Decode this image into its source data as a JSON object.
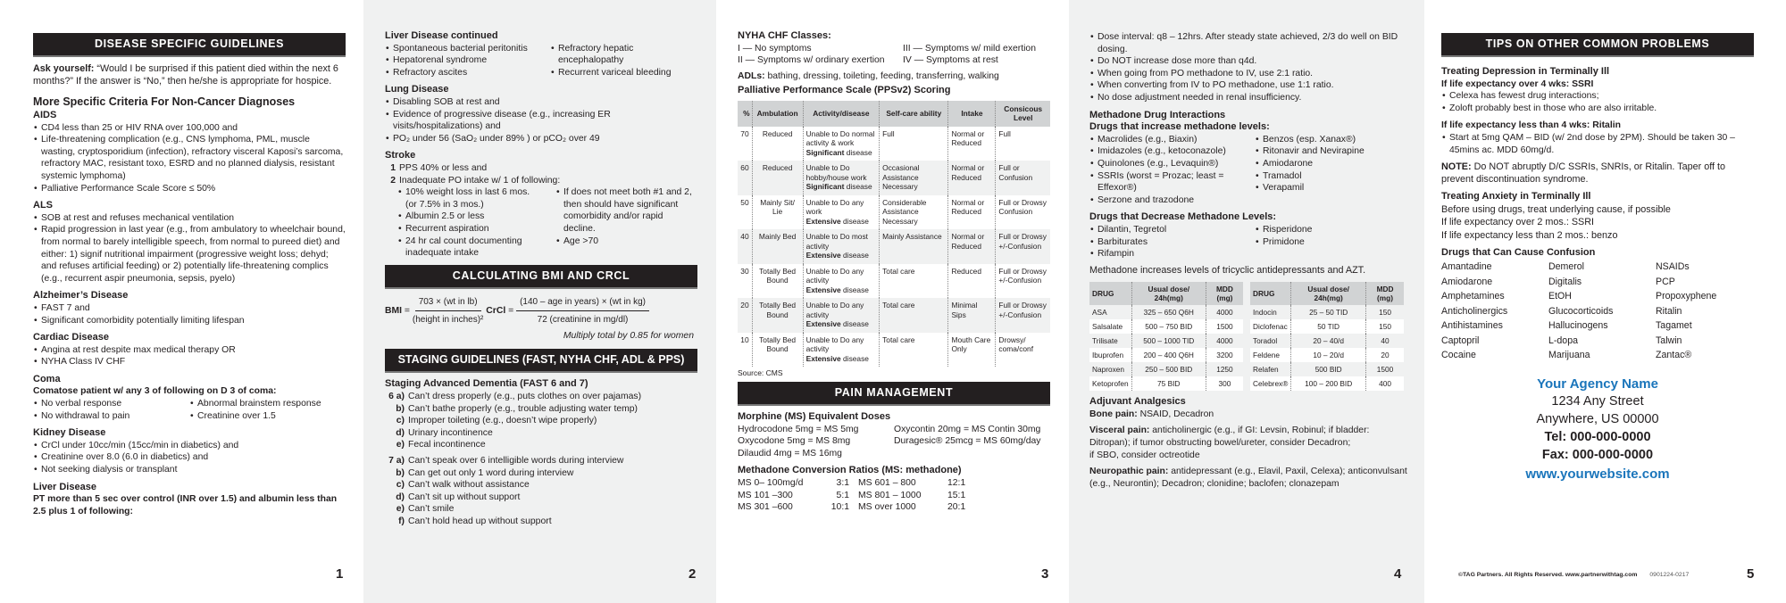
{
  "p1": {
    "header": "DISEASE SPECIFIC GUIDELINES",
    "ask_label": "Ask yourself:",
    "ask_text": "“Would I be surprised if this patient died within the next 6 months?” If the answer is “No,” then he/she is appropriate for hospice.",
    "criteria_title": "More Specific Criteria For Non-Cancer Diagnoses",
    "aids": {
      "title": "AIDS",
      "items": [
        "CD4 less than 25 or HIV RNA over 100,000 and",
        "Life-threatening complication (e.g., CNS lymphoma, PML, muscle wasting, cryptosporidium (infection), refractory visceral Kaposi’s sarcoma, refractory MAC, resistant toxo, ESRD and no planned dialysis, resistant systemic lymphoma)",
        "Palliative Performance Scale Score ≤ 50%"
      ]
    },
    "als": {
      "title": "ALS",
      "items": [
        "SOB at rest and refuses mechanical ventilation",
        "Rapid progression in last year (e.g., from ambulatory to wheelchair bound, from normal to barely intelligible speech, from normal to pureed diet) and either: 1) signif nutritional impairment (progressive weight loss; dehyd; and refuses artificial feeding) or 2) potentially life-threatening complics (e.g., recurrent aspir pneumonia, sepsis, pyelo)"
      ]
    },
    "alz": {
      "title": "Alzheimer’s Disease",
      "items": [
        "FAST 7 and",
        "Significant comorbidity potentially limiting lifespan"
      ]
    },
    "cardiac": {
      "title": "Cardiac Disease",
      "items": [
        "Angina at rest despite max medical therapy OR",
        "NYHA Class IV CHF"
      ]
    },
    "coma": {
      "title": "Coma",
      "intro": "Comatose patient w/ any 3 of following on D 3 of coma:",
      "left": [
        "No verbal response",
        "No withdrawal to pain"
      ],
      "right": [
        "Abnormal brainstem response",
        "Creatinine over 1.5"
      ]
    },
    "kidney": {
      "title": "Kidney Disease",
      "items": [
        "CrCl under 10cc/min (15cc/min in diabetics) and",
        "Creatinine over 8.0 (6.0 in diabetics) and",
        "Not seeking dialysis or transplant"
      ]
    },
    "liver": {
      "title": "Liver Disease",
      "text": "PT more than 5 sec over control (INR over 1.5) and albumin less than 2.5 plus 1 of following:"
    },
    "page": "1"
  },
  "p2": {
    "liver": {
      "title": "Liver Disease continued",
      "left": [
        "Spontaneous bacterial peritonitis",
        "Hepatorenal syndrome",
        "Refractory ascites"
      ],
      "right": [
        "Refractory hepatic encephalopathy",
        "Recurrent variceal bleeding"
      ]
    },
    "lung": {
      "title": "Lung Disease",
      "items": [
        "Disabling SOB at rest and",
        "Evidence of progressive disease (e.g., increasing ER visits/hospitalizations) and",
        "PO₂ under 56 (SaO₂ under 89% ) or pCO₂ over 49"
      ]
    },
    "stroke": {
      "title": "Stroke",
      "step1_num": "1",
      "step1": "PPS 40% or less and",
      "step2_num": "2",
      "step2": "Inadequate PO intake w/ 1 of following:",
      "left": [
        "10% weight loss in last 6 mos. (or 7.5% in 3 mos.)",
        "Albumin 2.5 or less",
        "Recurrent aspiration",
        "24 hr cal count documenting inadequate intake"
      ],
      "right": [
        "If does not meet both #1 and 2, then should have significant comorbidity and/or rapid decline.",
        "Age >70"
      ]
    },
    "bmi_header": "CALCULATING BMI AND CRCL",
    "bmi": {
      "label": "BMI",
      "num": "703 × (wt in lb)",
      "den": "(height in inches)²"
    },
    "crcl": {
      "label": "CrCl",
      "num": "(140 – age in years) × (wt in kg)",
      "den": "72 (creatinine in mg/dl)",
      "note": "Multiply total by 0.85 for women"
    },
    "staging_header": "STAGING GUIDELINES (FAST, NYHA CHF, ADL & PPS)",
    "dementia_title": "Staging Advanced Dementia (FAST 6 and 7)",
    "fast6": [
      [
        "6 a)",
        "Can’t dress properly (e.g., puts clothes on over pajamas)"
      ],
      [
        "b)",
        "Can’t bathe properly (e.g., trouble adjusting water temp)"
      ],
      [
        "c)",
        "Improper toileting (e.g., doesn’t wipe properly)"
      ],
      [
        "d)",
        "Urinary incontinence"
      ],
      [
        "e)",
        "Fecal incontinence"
      ]
    ],
    "fast7": [
      [
        "7 a)",
        "Can’t speak over 6 intelligible words during interview"
      ],
      [
        "b)",
        "Can get out only 1 word during interview"
      ],
      [
        "c)",
        "Can’t walk without assistance"
      ],
      [
        "d)",
        "Can’t sit up without support"
      ],
      [
        "e)",
        "Can’t smile"
      ],
      [
        "f)",
        "Can’t hold head up without support"
      ]
    ],
    "page": "2"
  },
  "p3": {
    "nyha_title": "NYHA CHF Classes:",
    "nyha": [
      "I — No symptoms",
      "II — Symptoms w/ ordinary exertion",
      "III — Symptoms w/ mild exertion",
      "IV — Symptoms at rest"
    ],
    "adl_label": "ADLs:",
    "adl_text": "bathing, dressing, toileting, feeding, transferring, walking",
    "pps_title": "Palliative Performance Scale (PPSv2) Scoring",
    "pps_headers": [
      "%",
      "Ambulation",
      "Activity/disease",
      "Self-care ability",
      "Intake",
      "Consicous Level"
    ],
    "pps_rows": [
      [
        "70",
        "Reduced",
        "Unable to Do normal activity & work",
        "Significant",
        "disease",
        "Full",
        "Normal or Reduced",
        "Full"
      ],
      [
        "60",
        "Reduced",
        "Unable to Do hobby/house work",
        "Significant",
        "disease",
        "Occasional Assistance Necessary",
        "Normal or Reduced",
        "Full or Confusion"
      ],
      [
        "50",
        "Mainly Sit/ Lie",
        "Unable to Do any work",
        "Extensive",
        "disease",
        "Considerable Assistance Necessary",
        "Normal or Reduced",
        "Full or Drowsy Confusion"
      ],
      [
        "40",
        "Mainly Bed",
        "Unable to Do most activity",
        "Extensive",
        "disease",
        "Mainly Assistance",
        "Normal or Reduced",
        "Full or Drowsy +/-Confusion"
      ],
      [
        "30",
        "Totally Bed Bound",
        "Unable to Do any activity",
        "Extensive",
        "disease",
        "Total care",
        "Reduced",
        "Full or Drowsy +/-Confusion"
      ],
      [
        "20",
        "Totally Bed Bound",
        "Unable to Do any activity",
        "Extensive",
        "disease",
        "Total care",
        "Minimal Sips",
        "Full or Drowsy +/-Confusion"
      ],
      [
        "10",
        "Totally Bed Bound",
        "Unable to Do any activity",
        "Extensive",
        "disease",
        "Total care",
        "Mouth Care Only",
        "Drowsy/ coma/conf"
      ]
    ],
    "source": "Source: CMS",
    "pain_header": "PAIN MANAGEMENT",
    "morphine_title": "Morphine (MS) Equivalent Doses",
    "morphine_left": [
      "Hydrocodone 5mg = MS 5mg",
      "Oxycodone 5mg = MS 8mg",
      "Dilaudid 4mg = MS 16mg"
    ],
    "morphine_right": [
      "Oxycontin 20mg = MS Contin 30mg",
      "Duragesic® 25mcg = MS 60mg/day"
    ],
    "methadone_title": "Methadone Conversion Ratios (MS: methadone)",
    "ratios": [
      [
        "MS 0– 100mg/d",
        "3:1",
        "MS 601 – 800",
        "12:1"
      ],
      [
        "MS 101 –300",
        "5:1",
        "MS 801 – 1000",
        "15:1"
      ],
      [
        "MS 301 –600",
        "10:1",
        "MS over 1000",
        "20:1"
      ]
    ],
    "page": "3"
  },
  "p4": {
    "bullets": [
      "Dose interval: q8 – 12hrs. After steady state achieved, 2/3 do well on BID dosing.",
      "Do NOT increase dose more than q4d.",
      "When going from PO methadone to IV, use 2:1 ratio.",
      "When converting from IV to PO methadone, use 1:1 ratio.",
      "No dose adjustment needed in renal insufficiency."
    ],
    "interactions_title": "Methadone Drug Interactions",
    "increase_title": "Drugs that increase methadone levels:",
    "inc_left": [
      "Macrolides (e.g., Biaxin)",
      "Imidazoles (e.g., ketoconazole)",
      "Quinolones (e.g., Levaquin®)",
      "SSRIs (worst = Prozac; least = Effexor®)",
      "Serzone and trazodone"
    ],
    "inc_right": [
      "Benzos (esp. Xanax®)",
      "Ritonavir and Nevirapine",
      "Amiodarone",
      "Tramadol",
      "Verapamil"
    ],
    "decrease_title": "Drugs that Decrease Methadone Levels:",
    "dec_left": [
      "Dilantin, Tegretol",
      "Barbiturates",
      "Rifampin"
    ],
    "dec_right": [
      "Risperidone",
      "Primidone"
    ],
    "tca_note": "Methadone increases levels of tricyclic antidepressants and AZT.",
    "nsaid_headers": [
      "DRUG",
      "Usual dose/ 24h(mg)",
      "MDD (mg)"
    ],
    "nsaid_left": [
      [
        "ASA",
        "325 – 650 Q6H",
        "4000"
      ],
      [
        "Salsalate",
        "500 – 750 BID",
        "1500"
      ],
      [
        "Trilisate",
        "500 – 1000 TID",
        "4000"
      ],
      [
        "Ibuprofen",
        "200 – 400 Q6H",
        "3200"
      ],
      [
        "Naproxen",
        "250 – 500 BID",
        "1250"
      ],
      [
        "Ketoprofen",
        "75 BID",
        "300"
      ]
    ],
    "nsaid_right": [
      [
        "Indocin",
        "25 – 50 TID",
        "150"
      ],
      [
        "Diclofenac",
        "50 TID",
        "150"
      ],
      [
        "Toradol",
        "20 – 40/d",
        "40"
      ],
      [
        "Feldene",
        "10 – 20/d",
        "20"
      ],
      [
        "Relafen",
        "500 BID",
        "1500"
      ],
      [
        "Celebrex®",
        "100 – 200 BID",
        "400"
      ]
    ],
    "adjuvant_title": "Adjuvant Analgesics",
    "bone_label": "Bone pain:",
    "bone_text": " NSAID, Decadron",
    "visceral_label": "Visceral pain:",
    "visceral_text": " anticholinergic (e.g., if GI: Levsin, Robinul; if bladder: Ditropan); if tumor obstructing bowel/ureter, consider Decadron;",
    "visceral_text2": "if SBO, consider octreotide",
    "neuro_label": "Neuropathic pain:",
    "neuro_text": " antidepressant (e.g., Elavil, Paxil, Celexa); anticonvulsant (e.g., Neurontin); Decadron; clonidine; baclofen; clonazepam",
    "page": "4"
  },
  "p5": {
    "header": "TIPS ON OTHER COMMON PROBLEMS",
    "depression_title": "Treating Depression in Terminally Ill",
    "over4": "If life expectancy over 4 wks: SSRI",
    "over4_items": [
      "Celexa has fewest drug interactions;",
      "Zoloft probably best in those who are also irritable."
    ],
    "less4": "If life expectancy less than 4 wks: Ritalin",
    "less4_items": [
      "Start at 5mg QAM – BID (w/ 2nd dose by 2PM). Should be taken 30 – 45mins ac. MDD 60mg/d."
    ],
    "note_label": "NOTE:",
    "note_text": " Do NOT abruptly D/C SSRIs, SNRIs, or Ritalin. Taper off to prevent discontinuation syndrome.",
    "anxiety_title": "Treating Anxiety in Terminally Ill",
    "anxiety_lines": [
      "Before using drugs, treat underlying cause, if possible",
      "If life expectancy over 2 mos.: SSRI",
      "If life expectancy less than 2 mos.: benzo"
    ],
    "confusion_title": "Drugs that Can Cause Confusion",
    "confusion": [
      "Amantadine",
      "Demerol",
      "NSAIDs",
      "Amiodarone",
      "Digitalis",
      "PCP",
      "Amphetamines",
      "EtOH",
      "Propoxyphene",
      "Anticholinergics",
      "Glucocorticoids",
      "Ritalin",
      "Antihistamines",
      "Hallucinogens",
      "Tagamet",
      "Captopril",
      "L-dopa",
      "Talwin",
      "Cocaine",
      "Marijuana",
      "Zantac®"
    ],
    "agency": {
      "name": "Your Agency Name",
      "street": "1234 Any Street",
      "city": "Anywhere, US 00000",
      "tel": "Tel: 000-000-0000",
      "fax": "Fax: 000-000-0000",
      "web": "www.yourwebsite.com"
    },
    "copyright": "©TAG Partners. All Rights Reserved. www.partnerwithtag.com",
    "code": "0901224-0217",
    "page": "5"
  },
  "colors": {
    "header_bg": "#231f20",
    "gray_panel": "#f0f1f1",
    "agency_blue": "#1a75bb"
  }
}
